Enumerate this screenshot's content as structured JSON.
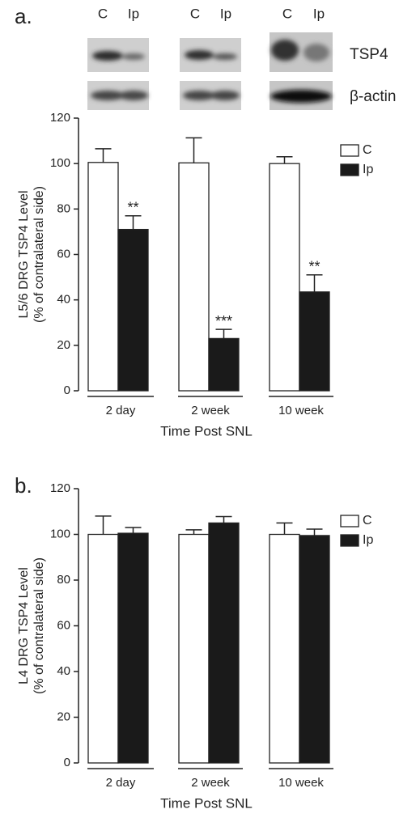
{
  "blot": {
    "lanes": [
      "C",
      "Ip",
      "C",
      "Ip",
      "C",
      "Ip"
    ],
    "rows": [
      "TSP4",
      "β-actin"
    ]
  },
  "chart_data": [
    {
      "type": "bar",
      "panel": "a.",
      "ylabel": [
        "L5/6 DRG TSP4 Level",
        "(% of contralateral side)"
      ],
      "xlabel": "Time Post SNL",
      "categories": [
        "2 day",
        "2 week",
        "10 week"
      ],
      "series": [
        {
          "name": "C",
          "color": "#ffffff",
          "values": [
            100.5,
            100.3,
            100
          ],
          "errors": [
            6,
            11,
            3
          ]
        },
        {
          "name": "Ip",
          "color": "#1a1a1a",
          "values": [
            71,
            23,
            43.5
          ],
          "errors": [
            6,
            4,
            7.5
          ],
          "significance": [
            "**",
            "***",
            "**"
          ]
        }
      ],
      "ylim": [
        0,
        120
      ],
      "yticks": [
        0,
        20,
        40,
        60,
        80,
        100,
        120
      ],
      "legend": "upper right"
    },
    {
      "type": "bar",
      "panel": "b.",
      "ylabel": [
        "L4 DRG TSP4 Level",
        "(% of contralateral side)"
      ],
      "xlabel": "Time Post SNL",
      "categories": [
        "2 day",
        "2 week",
        "10 week"
      ],
      "series": [
        {
          "name": "C",
          "color": "#ffffff",
          "values": [
            100,
            100,
            100
          ],
          "errors": [
            8,
            2,
            5
          ]
        },
        {
          "name": "Ip",
          "color": "#1a1a1a",
          "values": [
            100.5,
            105,
            99.5
          ],
          "errors": [
            2.5,
            2.8,
            2.8
          ]
        }
      ],
      "ylim": [
        0,
        120
      ],
      "yticks": [
        0,
        20,
        40,
        60,
        80,
        100,
        120
      ],
      "legend": "upper right"
    }
  ]
}
